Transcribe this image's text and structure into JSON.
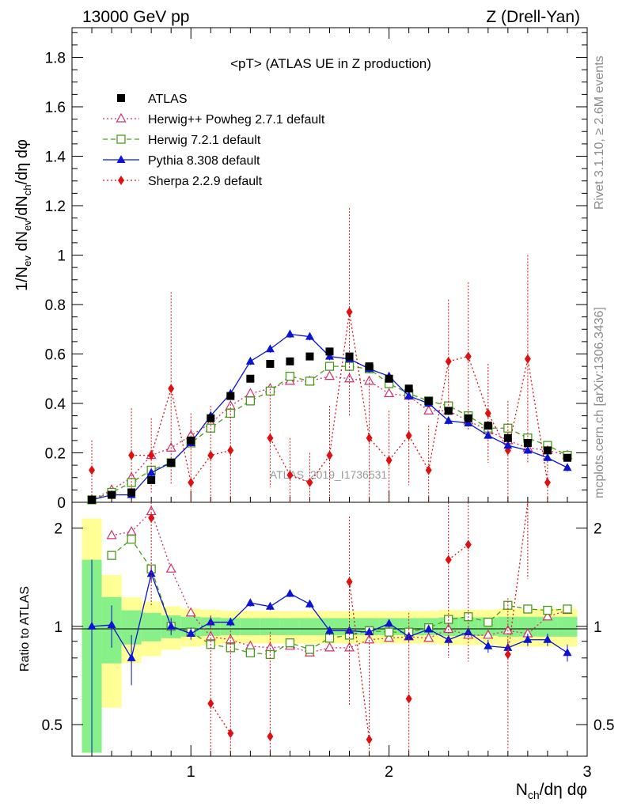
{
  "header": {
    "left": "13000 GeV pp",
    "right": "Z (Drell-Yan)"
  },
  "side_labels": {
    "top": "Rivet 3.1.10, ≥ 2.6M events",
    "bottom": "mcplots.cern.ch [arXiv:1306.3436]"
  },
  "watermark": "ATLAS_2019_I1736531",
  "axis_labels": {
    "main_y": "1/N_ev dN_ev/dN_ch/dη dφ",
    "ratio_y": "Ratio to ATLAS",
    "x": "N_ch/dη dφ"
  },
  "chart_data": {
    "type": "scatter",
    "title": "<pT> (ATLAS UE in Z production)",
    "xlabel": "N_ch/dη dφ",
    "ylabel": "1/N_ev dN_ev/dN_ch/dη dφ",
    "xlim": [
      0.4,
      3.0
    ],
    "ylim": [
      0,
      1.92
    ],
    "x_ticks": [
      "1",
      "2",
      "3"
    ],
    "y_ticks": [
      "0",
      "0.2",
      "0.4",
      "0.6",
      "0.8",
      "1",
      "1.2",
      "1.4",
      "1.6",
      "1.8"
    ],
    "x": [
      0.5,
      0.6,
      0.7,
      0.8,
      0.9,
      1.0,
      1.1,
      1.2,
      1.3,
      1.4,
      1.5,
      1.6,
      1.7,
      1.8,
      1.9,
      2.0,
      2.1,
      2.2,
      2.3,
      2.4,
      2.5,
      2.6,
      2.7,
      2.8,
      2.9
    ],
    "series": [
      {
        "name": "ATLAS",
        "color": "#000000",
        "marker": "square-filled",
        "line": "none",
        "values": [
          0.01,
          0.03,
          0.04,
          0.09,
          0.16,
          0.25,
          0.34,
          0.43,
          0.5,
          0.56,
          0.57,
          0.59,
          0.61,
          0.59,
          0.55,
          0.5,
          0.46,
          0.41,
          0.37,
          0.34,
          0.31,
          0.26,
          0.24,
          0.21,
          0.18
        ]
      },
      {
        "name": "Herwig++ Powheg 2.7.1 default",
        "color": "#d0306c",
        "marker": "triangle-open",
        "line": "dotted",
        "values": [
          0.01,
          0.05,
          0.1,
          0.19,
          0.22,
          0.27,
          0.32,
          0.39,
          0.44,
          0.46,
          0.49,
          0.49,
          0.51,
          0.5,
          0.49,
          0.44,
          0.43,
          0.37,
          0.37,
          0.33,
          0.29,
          0.25,
          0.22,
          0.21,
          0.19
        ]
      },
      {
        "name": "Herwig 7.2.1 default",
        "color": "#4a9a1a",
        "marker": "square-open",
        "line": "dashed",
        "values": [
          0.01,
          0.04,
          0.08,
          0.13,
          0.16,
          0.24,
          0.3,
          0.36,
          0.41,
          0.45,
          0.51,
          0.49,
          0.55,
          0.55,
          0.54,
          0.48,
          0.44,
          0.41,
          0.39,
          0.35,
          0.3,
          0.3,
          0.26,
          0.23,
          0.19
        ]
      },
      {
        "name": "Pythia 8.308 default",
        "color": "#0a14d2",
        "marker": "triangle-filled",
        "line": "solid",
        "values": [
          0.01,
          0.03,
          0.03,
          0.12,
          0.16,
          0.24,
          0.35,
          0.44,
          0.57,
          0.62,
          0.68,
          0.67,
          0.59,
          0.58,
          0.54,
          0.51,
          0.43,
          0.4,
          0.33,
          0.32,
          0.27,
          0.23,
          0.21,
          0.18,
          0.14
        ]
      },
      {
        "name": "Sherpa 2.2.9 default",
        "color": "#e01010",
        "marker": "diamond-filled",
        "line": "dotted",
        "values": [
          0.13,
          null,
          0.19,
          0.19,
          0.46,
          0.08,
          0.19,
          0.21,
          null,
          0.26,
          0.11,
          0.08,
          0.19,
          0.77,
          0.26,
          0.17,
          0.27,
          0.13,
          0.57,
          0.59,
          0.36,
          0.21,
          0.58,
          0.08,
          null
        ]
      }
    ],
    "ratio": {
      "ylabel": "Ratio to ATLAS",
      "ylim": [
        0.4,
        2.4
      ],
      "y_ticks": [
        "0.5",
        "1",
        "2"
      ],
      "series": [
        {
          "name": "Herwig++ Powheg 2.7.1 default",
          "values": [
            null,
            1.9,
            1.95,
            2.25,
            1.5,
            1.1,
            0.93,
            0.91,
            0.87,
            0.86,
            0.87,
            0.83,
            0.86,
            0.86,
            0.91,
            0.92,
            0.93,
            0.92,
            0.98,
            0.94,
            0.94,
            0.97,
            0.95,
            1.07,
            1.12
          ]
        },
        {
          "name": "Herwig 7.2.1 default",
          "values": [
            null,
            1.65,
            1.85,
            1.5,
            1.0,
            0.96,
            0.88,
            0.86,
            0.83,
            0.82,
            0.89,
            0.85,
            0.92,
            0.94,
            0.97,
            0.96,
            0.96,
            0.99,
            1.05,
            1.07,
            1.03,
            1.16,
            1.13,
            1.12,
            1.13
          ]
        },
        {
          "name": "Pythia 8.308 default",
          "values": [
            1.0,
            1.01,
            0.8,
            1.45,
            1.0,
            0.95,
            1.03,
            1.03,
            1.18,
            1.15,
            1.26,
            1.17,
            0.97,
            0.97,
            0.96,
            1.02,
            0.93,
            0.98,
            0.91,
            0.96,
            0.87,
            0.86,
            0.91,
            0.91,
            0.83
          ]
        },
        {
          "name": "Sherpa 2.2.9 default",
          "values": [
            null,
            null,
            null,
            2.15,
            null,
            null,
            0.58,
            0.47,
            null,
            0.46,
            null,
            null,
            null,
            1.37,
            0.45,
            null,
            0.6,
            null,
            1.6,
            1.78,
            null,
            0.82,
            2.4,
            null,
            null
          ]
        }
      ]
    }
  }
}
